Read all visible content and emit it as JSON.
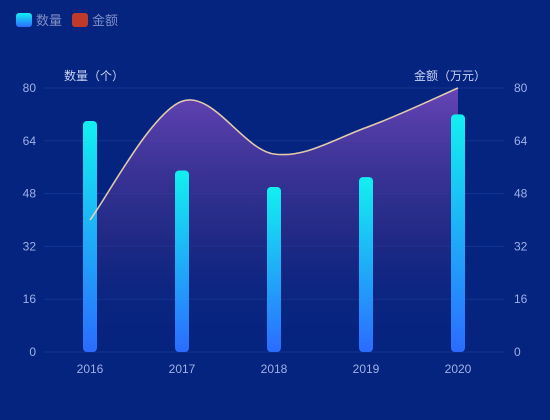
{
  "chart_data": {
    "type": "bar",
    "categories": [
      "2016",
      "2017",
      "2018",
      "2019",
      "2020"
    ],
    "series": [
      {
        "name": "数量",
        "kind": "bar",
        "axis": "left",
        "values": [
          70,
          55,
          50,
          53,
          72
        ],
        "color": "#12f0f0",
        "color_end": "#2b6cff"
      },
      {
        "name": "金额",
        "kind": "area-line",
        "axis": "right",
        "values": [
          40,
          76,
          60,
          68,
          80
        ],
        "color": "#c0392b",
        "line_color": "#f6d9b0"
      }
    ],
    "y_left": {
      "label": "数量（个）",
      "ylim": [
        0,
        80
      ],
      "ticks": [
        0,
        16,
        32,
        48,
        64,
        80
      ]
    },
    "y_right": {
      "label": "金额（万元）",
      "ylim": [
        0,
        80
      ],
      "ticks": [
        0,
        16,
        32,
        48,
        64,
        80
      ]
    },
    "grid": true,
    "legend_position": "top-left",
    "background": "#05247f"
  }
}
